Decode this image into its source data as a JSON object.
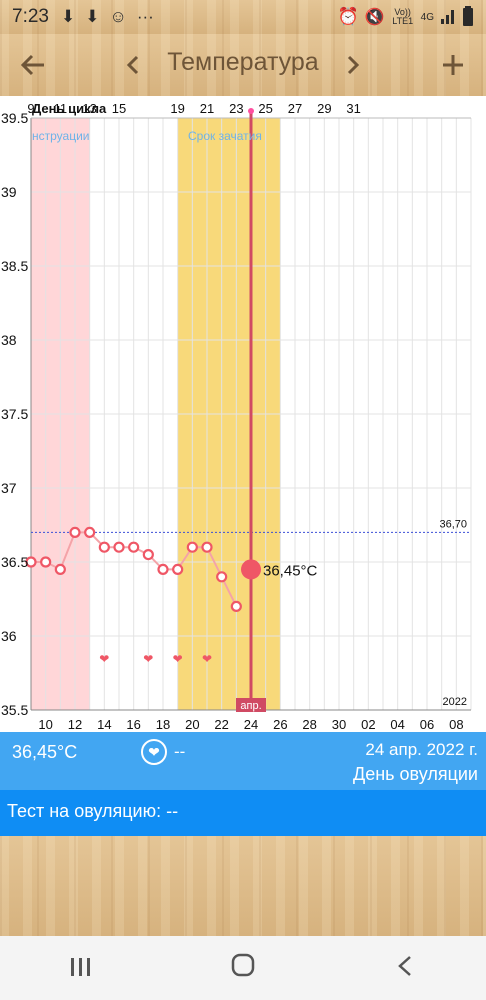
{
  "status_bar": {
    "time": "7:23",
    "icons": [
      "download-icon",
      "download-icon",
      "snapchat-icon",
      "more-icon"
    ],
    "right_icons": [
      "alarm-icon",
      "mute-icon",
      "volte-icon",
      "4g-icon",
      "signal-icon",
      "battery-icon"
    ],
    "volte_label": "Vo)) LTE1",
    "network_label": "4G"
  },
  "header": {
    "title": "Температура",
    "back_icon": "back-arrow-icon",
    "prev_icon": "chevron-left-icon",
    "next_icon": "chevron-right-icon",
    "add_icon": "plus-icon"
  },
  "chart_data": {
    "type": "line",
    "top_axis_label": "День цикла",
    "cycle_day_ticks": [
      "9",
      "11",
      "13",
      "15",
      "19",
      "21",
      "23",
      "25",
      "27",
      "29",
      "31"
    ],
    "date_ticks": [
      "10",
      "12",
      "14",
      "16",
      "18",
      "20",
      "22",
      "24",
      "26",
      "28",
      "30",
      "02",
      "04",
      "06",
      "08"
    ],
    "y_ticks": [
      "39.5",
      "39",
      "38.5",
      "38",
      "37.5",
      "37",
      "36.5",
      "36",
      "35.5"
    ],
    "ylim": [
      35.5,
      39.5
    ],
    "x_start_day": 9,
    "x_end_day": 39,
    "series": [
      {
        "x": [
          9,
          10,
          11,
          12,
          13,
          14,
          15,
          16,
          17,
          18,
          19,
          20,
          21,
          22,
          23
        ],
        "values": [
          36.5,
          36.5,
          36.45,
          36.7,
          36.7,
          36.6,
          36.6,
          36.6,
          36.55,
          36.45,
          36.45,
          36.6,
          36.6,
          36.4,
          36.2
        ]
      }
    ],
    "selected_point": {
      "x": 24,
      "value": 36.45,
      "label": "36,45°C"
    },
    "coverline": {
      "value": 36.7,
      "label": "36,70"
    },
    "intercourse_days": [
      14,
      17,
      19,
      21
    ],
    "period_band": {
      "x_from": 9,
      "x_to": 13,
      "label": "нструации"
    },
    "fertile_band": {
      "x_from": 19,
      "x_to": 26,
      "label": "Срок зачатия"
    },
    "month_marker": {
      "x": 24,
      "label": "апр."
    },
    "year_label": "2022"
  },
  "info": {
    "temperature": "36,45°C",
    "intercourse": "--",
    "date": "24 апр. 2022 г.",
    "day_status": "День овуляции"
  },
  "test": {
    "text": "Тест на овуляцию: --"
  },
  "nav": {
    "recent_icon": "recent-apps-icon",
    "home_icon": "home-icon",
    "back_icon": "nav-back-icon"
  },
  "colors": {
    "period": "#ffd6d8",
    "fertile": "#f8d97a",
    "line": "#f4a3a8",
    "point": "#ef5766",
    "marker": "#d04a63",
    "info_bar": "#42a6f2",
    "test_bar": "#0f8df4"
  }
}
